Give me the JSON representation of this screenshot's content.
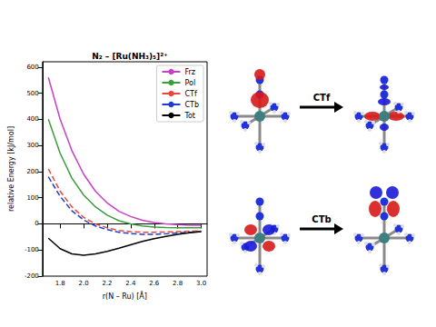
{
  "chart_data": {
    "type": "line",
    "title": "N₂ – [Ru(NH₃)₅]²⁺",
    "x_label": "r(N – Ru) [Å]",
    "y_label": "relative Energy [kJ/mol]",
    "x": [
      1.7,
      1.8,
      1.9,
      2.0,
      2.1,
      2.2,
      2.3,
      2.4,
      2.5,
      2.6,
      2.7,
      2.8,
      2.9,
      3.0
    ],
    "series": [
      {
        "name": "Frz",
        "color": "#c83fc8",
        "line_style": "solid",
        "values": [
          560,
          400,
          280,
          190,
          125,
          80,
          48,
          28,
          14,
          5,
          0,
          -3,
          -5,
          -5
        ]
      },
      {
        "name": "Pol",
        "color": "#3a9e3a",
        "line_style": "solid",
        "values": [
          400,
          270,
          175,
          110,
          65,
          33,
          12,
          0,
          -8,
          -12,
          -14,
          -15,
          -15,
          -15
        ]
      },
      {
        "name": "CTf",
        "color": "#e8483a",
        "line_style": "dashed",
        "values": [
          210,
          125,
          65,
          25,
          0,
          -15,
          -25,
          -30,
          -32,
          -32,
          -31,
          -30,
          -28,
          -27
        ]
      },
      {
        "name": "CTb",
        "color": "#1f3bd0",
        "line_style": "dashed",
        "values": [
          180,
          105,
          50,
          15,
          -8,
          -22,
          -32,
          -37,
          -40,
          -40,
          -38,
          -35,
          -32,
          -30
        ]
      },
      {
        "name": "Tot",
        "color": "#000000",
        "line_style": "solid",
        "values": [
          -55,
          -95,
          -115,
          -120,
          -115,
          -105,
          -93,
          -80,
          -67,
          -57,
          -48,
          -40,
          -34,
          -30
        ]
      }
    ],
    "xlim": [
      1.65,
      3.05
    ],
    "xticks": [
      1.8,
      {
        "value": 2.0,
        "label": "2.0"
      },
      2.2,
      2.4,
      2.6,
      2.8,
      {
        "value": 3.0,
        "label": "3.0"
      }
    ],
    "ylim": [
      -200,
      620
    ],
    "yticks": [
      -200,
      -100,
      0,
      100,
      200,
      300,
      400,
      500,
      600
    ],
    "grid": false,
    "legend": "upper right",
    "marker": "none"
  },
  "diagram": {
    "arrows": [
      {
        "label": "CTf"
      },
      {
        "label": "CTb"
      }
    ]
  }
}
